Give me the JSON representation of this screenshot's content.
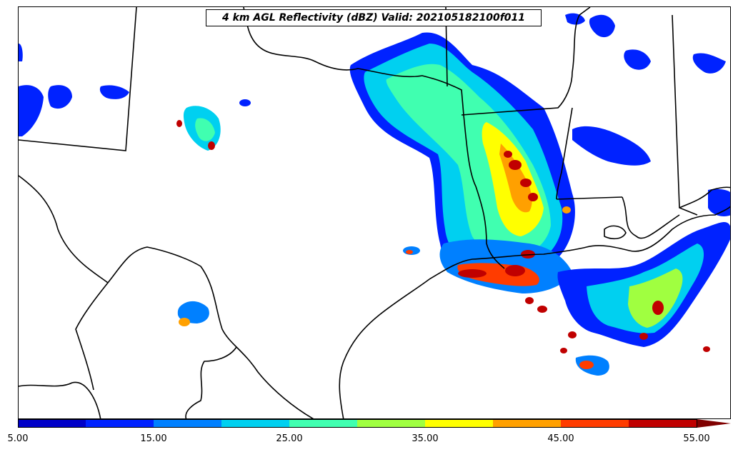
{
  "title": "4 km AGL Reflectivity (dBZ) Valid: 202105182100f011",
  "colorbar": {
    "levels": [
      5,
      10,
      15,
      20,
      25,
      30,
      35,
      40,
      45,
      50,
      55
    ],
    "colors": [
      "#0000c8",
      "#0022ff",
      "#0080ff",
      "#00d0f0",
      "#40ffb0",
      "#a0ff40",
      "#ffff00",
      "#ffa000",
      "#ff3c00",
      "#c00000"
    ],
    "extend_color": "#800000",
    "tick_labels": [
      "5.00",
      "15.00",
      "25.00",
      "35.00",
      "45.00",
      "55.00"
    ]
  }
}
